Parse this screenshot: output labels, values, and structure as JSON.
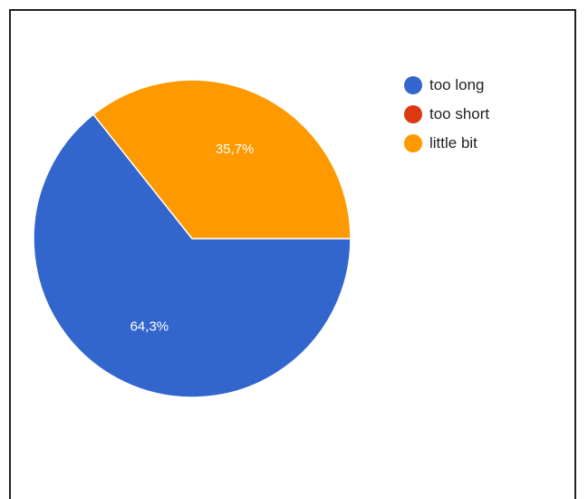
{
  "chart_data": {
    "type": "pie",
    "slices": [
      {
        "label": "too long",
        "value": 64.3,
        "display": "64,3%",
        "color": "#3366cc"
      },
      {
        "label": "too short",
        "value": 0,
        "display": "",
        "color": "#dc3912"
      },
      {
        "label": "little bit",
        "value": 35.7,
        "display": "35,7%",
        "color": "#ff9900"
      }
    ],
    "legend_position": "right"
  }
}
